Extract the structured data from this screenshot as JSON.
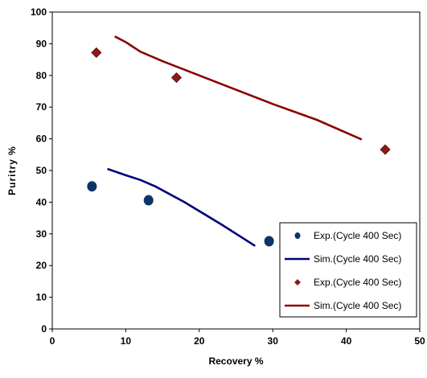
{
  "chart_data": {
    "type": "scatter",
    "title": "",
    "xlabel": "Recovery %",
    "ylabel": "Puritry %",
    "xlim": [
      0,
      50
    ],
    "ylim": [
      0,
      100
    ],
    "xticks": [
      0,
      10,
      20,
      30,
      40,
      50
    ],
    "yticks": [
      0,
      10,
      20,
      30,
      40,
      50,
      60,
      70,
      80,
      90,
      100
    ],
    "grid": false,
    "legend_position": "bottom-right",
    "series": [
      {
        "name": "Exp.(Cycle 400 Sec)",
        "kind": "scatter",
        "marker": "circle",
        "color": "#0a3566",
        "points": [
          [
            5.4,
            45.0
          ],
          [
            13.1,
            40.6
          ],
          [
            29.5,
            27.7
          ]
        ]
      },
      {
        "name": "Sim.(Cycle 400 Sec)",
        "kind": "line",
        "color": "#00007a",
        "points": [
          [
            7.5,
            50.5
          ],
          [
            10,
            48.5
          ],
          [
            12,
            47
          ],
          [
            14,
            45
          ],
          [
            18,
            40
          ],
          [
            23,
            33
          ],
          [
            27.6,
            26.2
          ]
        ]
      },
      {
        "name": "Exp.(Cycle 400 Sec)",
        "kind": "scatter",
        "marker": "diamond",
        "color": "#8b1a1a",
        "points": [
          [
            6.0,
            87.2
          ],
          [
            16.9,
            79.3
          ],
          [
            45.3,
            56.6
          ]
        ]
      },
      {
        "name": "Sim.(Cycle 400 Sec)",
        "kind": "line",
        "color": "#8b0000",
        "points": [
          [
            8.5,
            92.3
          ],
          [
            10,
            90.5
          ],
          [
            12,
            87.5
          ],
          [
            15,
            84.5
          ],
          [
            20,
            80
          ],
          [
            30,
            71
          ],
          [
            36,
            66
          ],
          [
            42.1,
            59.8
          ]
        ]
      }
    ]
  }
}
